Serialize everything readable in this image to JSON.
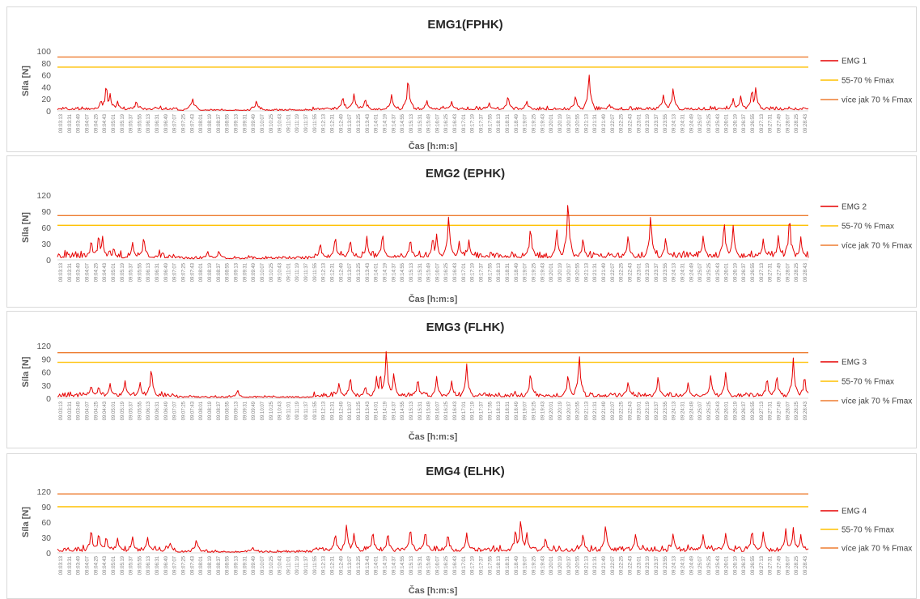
{
  "colors": {
    "emg": "#e60000",
    "band55": "#ffc000",
    "band70": "#ed7d31",
    "axis": "#d9d9d9"
  },
  "x_time_labels": [
    "09:03:13",
    "09:03:31",
    "09:03:49",
    "09:04:07",
    "09:04:25",
    "09:04:43",
    "09:05:01",
    "09:05:19",
    "09:05:37",
    "09:05:55",
    "09:06:13",
    "09:06:31",
    "09:06:49",
    "09:07:07",
    "09:07:25",
    "09:07:43",
    "09:08:01",
    "09:08:19",
    "09:08:37",
    "09:08:55",
    "09:09:13",
    "09:09:31",
    "09:09:49",
    "09:10:07",
    "09:10:25",
    "09:10:43",
    "09:11:01",
    "09:11:19",
    "09:11:37",
    "09:11:55",
    "09:12:13",
    "09:12:31",
    "09:12:49",
    "09:13:07",
    "09:13:25",
    "09:13:43",
    "09:14:01",
    "09:14:19",
    "09:14:37",
    "09:14:55",
    "09:15:13",
    "09:15:31",
    "09:15:49",
    "09:16:07",
    "09:16:25",
    "09:16:43",
    "09:17:01",
    "09:17:19",
    "09:17:37",
    "09:17:55",
    "09:18:13",
    "09:18:31",
    "09:18:49",
    "09:19:07",
    "09:19:25",
    "09:19:43",
    "09:20:01",
    "09:20:19",
    "09:20:37",
    "09:20:55",
    "09:21:13",
    "09:21:31",
    "09:21:49",
    "09:22:07",
    "09:22:25",
    "09:22:43",
    "09:23:01",
    "09:23:19",
    "09:23:37",
    "09:23:55",
    "09:24:13",
    "09:24:31",
    "09:24:49",
    "09:25:07",
    "09:25:25",
    "09:25:43",
    "09:26:01",
    "09:26:19",
    "09:26:37",
    "09:26:55",
    "09:27:13",
    "09:27:31",
    "09:27:49",
    "09:28:07",
    "09:28:25",
    "09:28:43"
  ],
  "chart_data": [
    {
      "type": "line",
      "title": "EMG1(FPHK)",
      "ylabel": "Síla [N]",
      "xlabel": "Čas [h:m:s]",
      "ylim": [
        0,
        100
      ],
      "yticks": [
        0,
        20,
        40,
        60,
        80,
        100
      ],
      "legend_position": "right",
      "reference_lines": [
        {
          "name": "55-70 % Fmax",
          "value": 73
        },
        {
          "name": "více jak 70 % Fmax",
          "value": 90
        }
      ],
      "series": [
        {
          "name": "EMG 1",
          "base": 4,
          "noise": 7,
          "peaks": [
            [
              0.058,
              20
            ],
            [
              0.065,
              47
            ],
            [
              0.07,
              30
            ],
            [
              0.08,
              17
            ],
            [
              0.105,
              18
            ],
            [
              0.18,
              22
            ],
            [
              0.265,
              18
            ],
            [
              0.38,
              25
            ],
            [
              0.395,
              30
            ],
            [
              0.41,
              22
            ],
            [
              0.445,
              28
            ],
            [
              0.467,
              58
            ],
            [
              0.492,
              18
            ],
            [
              0.525,
              16
            ],
            [
              0.575,
              14
            ],
            [
              0.6,
              27
            ],
            [
              0.625,
              17
            ],
            [
              0.69,
              27
            ],
            [
              0.708,
              63
            ],
            [
              0.735,
              12
            ],
            [
              0.807,
              28
            ],
            [
              0.82,
              40
            ],
            [
              0.9,
              22
            ],
            [
              0.91,
              26
            ],
            [
              0.925,
              39
            ],
            [
              0.93,
              40
            ]
          ]
        }
      ]
    },
    {
      "type": "line",
      "title": "EMG2 (EPHK)",
      "ylabel": "Síla [N]",
      "xlabel": "Čas [h:m:s]",
      "ylim": [
        0,
        120
      ],
      "yticks": [
        0,
        30,
        60,
        90,
        120
      ],
      "legend_position": "right",
      "reference_lines": [
        {
          "name": "55-70 % Fmax",
          "value": 64
        },
        {
          "name": "více jak 70 % Fmax",
          "value": 82
        }
      ],
      "series": [
        {
          "name": "EMG 2",
          "base": 9,
          "noise": 16,
          "peaks": [
            [
              0.045,
              40
            ],
            [
              0.055,
              51
            ],
            [
              0.06,
              45
            ],
            [
              0.075,
              25
            ],
            [
              0.1,
              34
            ],
            [
              0.115,
              46
            ],
            [
              0.2,
              17
            ],
            [
              0.215,
              18
            ],
            [
              0.35,
              33
            ],
            [
              0.37,
              46
            ],
            [
              0.39,
              40
            ],
            [
              0.412,
              44
            ],
            [
              0.433,
              52
            ],
            [
              0.47,
              42
            ],
            [
              0.5,
              46
            ],
            [
              0.505,
              48
            ],
            [
              0.521,
              86
            ],
            [
              0.535,
              35
            ],
            [
              0.548,
              38
            ],
            [
              0.63,
              64
            ],
            [
              0.665,
              60
            ],
            [
              0.68,
              118
            ],
            [
              0.7,
              43
            ],
            [
              0.76,
              48
            ],
            [
              0.79,
              87
            ],
            [
              0.81,
              43
            ],
            [
              0.86,
              47
            ],
            [
              0.888,
              75
            ],
            [
              0.9,
              67
            ],
            [
              0.94,
              40
            ],
            [
              0.96,
              46
            ],
            [
              0.975,
              86
            ],
            [
              0.99,
              43
            ]
          ]
        }
      ]
    },
    {
      "type": "line",
      "title": "EMG3 (FLHK)",
      "ylabel": "Síla [N]",
      "xlabel": "Čas [h:m:s]",
      "ylim": [
        0,
        120
      ],
      "yticks": [
        0,
        30,
        60,
        90,
        120
      ],
      "legend_position": "right",
      "reference_lines": [
        {
          "name": "55-70 % Fmax",
          "value": 82
        },
        {
          "name": "více jak 70 % Fmax",
          "value": 104
        }
      ],
      "series": [
        {
          "name": "EMG 3",
          "base": 8,
          "noise": 14,
          "peaks": [
            [
              0.045,
              32
            ],
            [
              0.055,
              30
            ],
            [
              0.07,
              35
            ],
            [
              0.09,
              42
            ],
            [
              0.11,
              38
            ],
            [
              0.125,
              74
            ],
            [
              0.24,
              20
            ],
            [
              0.375,
              36
            ],
            [
              0.39,
              52
            ],
            [
              0.41,
              30
            ],
            [
              0.425,
              52
            ],
            [
              0.43,
              62
            ],
            [
              0.438,
              115
            ],
            [
              0.448,
              60
            ],
            [
              0.48,
              48
            ],
            [
              0.505,
              50
            ],
            [
              0.525,
              40
            ],
            [
              0.545,
              80
            ],
            [
              0.63,
              62
            ],
            [
              0.68,
              58
            ],
            [
              0.695,
              104
            ],
            [
              0.76,
              40
            ],
            [
              0.8,
              52
            ],
            [
              0.84,
              38
            ],
            [
              0.87,
              55
            ],
            [
              0.89,
              62
            ],
            [
              0.945,
              50
            ],
            [
              0.958,
              56
            ],
            [
              0.98,
              93
            ],
            [
              0.995,
              55
            ]
          ]
        }
      ]
    },
    {
      "type": "line",
      "title": "EMG4 (ELHK)",
      "ylabel": "Síla [N]",
      "xlabel": "Čas [h:m:s]",
      "ylim": [
        0,
        120
      ],
      "yticks": [
        0,
        30,
        60,
        90,
        120
      ],
      "legend_position": "right",
      "reference_lines": [
        {
          "name": "55-70 % Fmax",
          "value": 90
        },
        {
          "name": "více jak 70 % Fmax",
          "value": 115
        }
      ],
      "series": [
        {
          "name": "EMG 4",
          "base": 6,
          "noise": 14,
          "peaks": [
            [
              0.045,
              50
            ],
            [
              0.055,
              42
            ],
            [
              0.065,
              35
            ],
            [
              0.08,
              30
            ],
            [
              0.1,
              33
            ],
            [
              0.12,
              32
            ],
            [
              0.15,
              20
            ],
            [
              0.185,
              28
            ],
            [
              0.26,
              12
            ],
            [
              0.37,
              40
            ],
            [
              0.385,
              57
            ],
            [
              0.395,
              40
            ],
            [
              0.42,
              45
            ],
            [
              0.44,
              42
            ],
            [
              0.47,
              52
            ],
            [
              0.49,
              46
            ],
            [
              0.52,
              40
            ],
            [
              0.545,
              40
            ],
            [
              0.61,
              50
            ],
            [
              0.617,
              70
            ],
            [
              0.625,
              42
            ],
            [
              0.65,
              32
            ],
            [
              0.7,
              40
            ],
            [
              0.73,
              58
            ],
            [
              0.77,
              40
            ],
            [
              0.82,
              40
            ],
            [
              0.86,
              38
            ],
            [
              0.89,
              40
            ],
            [
              0.925,
              48
            ],
            [
              0.94,
              42
            ],
            [
              0.97,
              48
            ],
            [
              0.98,
              50
            ],
            [
              0.99,
              36
            ]
          ]
        }
      ]
    }
  ]
}
